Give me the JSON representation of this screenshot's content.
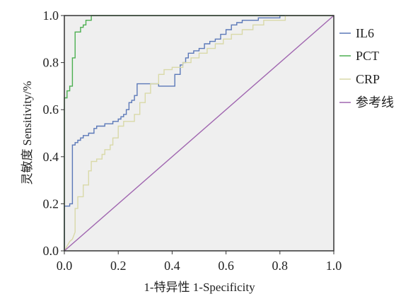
{
  "chart_data": {
    "type": "line",
    "title": "",
    "xlabel": "1-特异性 1-Specificity",
    "ylabel": "灵敏度 Sensitivity/%",
    "xlim": [
      0,
      1
    ],
    "ylim": [
      0,
      1
    ],
    "x_ticks": [
      "0.0",
      "0.2",
      "0.4",
      "0.6",
      "0.8",
      "1.0"
    ],
    "y_ticks": [
      "0.0",
      "0.2",
      "0.4",
      "0.6",
      "0.8",
      "1.0"
    ],
    "grid": false,
    "plot_background": "#efefef",
    "legend_position": "right",
    "series": [
      {
        "name": "IL6",
        "color": "#5b78b8",
        "points": [
          [
            0,
            0
          ],
          [
            0,
            0.19
          ],
          [
            0.02,
            0.19
          ],
          [
            0.02,
            0.2
          ],
          [
            0.03,
            0.2
          ],
          [
            0.03,
            0.45
          ],
          [
            0.04,
            0.45
          ],
          [
            0.04,
            0.46
          ],
          [
            0.05,
            0.46
          ],
          [
            0.05,
            0.47
          ],
          [
            0.06,
            0.47
          ],
          [
            0.06,
            0.48
          ],
          [
            0.07,
            0.48
          ],
          [
            0.07,
            0.49
          ],
          [
            0.09,
            0.49
          ],
          [
            0.09,
            0.5
          ],
          [
            0.11,
            0.5
          ],
          [
            0.11,
            0.52
          ],
          [
            0.12,
            0.52
          ],
          [
            0.12,
            0.53
          ],
          [
            0.15,
            0.53
          ],
          [
            0.15,
            0.54
          ],
          [
            0.18,
            0.54
          ],
          [
            0.18,
            0.55
          ],
          [
            0.2,
            0.55
          ],
          [
            0.2,
            0.56
          ],
          [
            0.21,
            0.56
          ],
          [
            0.21,
            0.57
          ],
          [
            0.22,
            0.57
          ],
          [
            0.22,
            0.58
          ],
          [
            0.23,
            0.58
          ],
          [
            0.23,
            0.6
          ],
          [
            0.24,
            0.6
          ],
          [
            0.24,
            0.63
          ],
          [
            0.25,
            0.63
          ],
          [
            0.25,
            0.64
          ],
          [
            0.26,
            0.64
          ],
          [
            0.26,
            0.66
          ],
          [
            0.27,
            0.66
          ],
          [
            0.27,
            0.71
          ],
          [
            0.35,
            0.71
          ],
          [
            0.35,
            0.7
          ],
          [
            0.41,
            0.7
          ],
          [
            0.41,
            0.75
          ],
          [
            0.43,
            0.75
          ],
          [
            0.43,
            0.79
          ],
          [
            0.44,
            0.79
          ],
          [
            0.44,
            0.8
          ],
          [
            0.45,
            0.8
          ],
          [
            0.45,
            0.82
          ],
          [
            0.46,
            0.82
          ],
          [
            0.46,
            0.84
          ],
          [
            0.48,
            0.84
          ],
          [
            0.48,
            0.85
          ],
          [
            0.5,
            0.85
          ],
          [
            0.5,
            0.86
          ],
          [
            0.52,
            0.86
          ],
          [
            0.52,
            0.88
          ],
          [
            0.54,
            0.88
          ],
          [
            0.54,
            0.89
          ],
          [
            0.56,
            0.89
          ],
          [
            0.56,
            0.9
          ],
          [
            0.58,
            0.9
          ],
          [
            0.58,
            0.92
          ],
          [
            0.6,
            0.92
          ],
          [
            0.6,
            0.94
          ],
          [
            0.62,
            0.94
          ],
          [
            0.62,
            0.96
          ],
          [
            0.64,
            0.96
          ],
          [
            0.64,
            0.97
          ],
          [
            0.66,
            0.97
          ],
          [
            0.66,
            0.98
          ],
          [
            0.72,
            0.98
          ],
          [
            0.72,
            0.99
          ],
          [
            0.8,
            0.99
          ],
          [
            0.8,
            1
          ],
          [
            1,
            1
          ]
        ]
      },
      {
        "name": "PCT",
        "color": "#4caf50",
        "points": [
          [
            0,
            0
          ],
          [
            0,
            0.65
          ],
          [
            0.01,
            0.65
          ],
          [
            0.01,
            0.68
          ],
          [
            0.02,
            0.68
          ],
          [
            0.02,
            0.7
          ],
          [
            0.03,
            0.7
          ],
          [
            0.03,
            0.82
          ],
          [
            0.04,
            0.82
          ],
          [
            0.04,
            0.93
          ],
          [
            0.06,
            0.93
          ],
          [
            0.06,
            0.95
          ],
          [
            0.07,
            0.95
          ],
          [
            0.07,
            0.96
          ],
          [
            0.08,
            0.96
          ],
          [
            0.08,
            0.98
          ],
          [
            0.1,
            0.98
          ],
          [
            0.1,
            1
          ],
          [
            1,
            1
          ]
        ]
      },
      {
        "name": "CRP",
        "color": "#d9d9a8",
        "points": [
          [
            0,
            0
          ],
          [
            0.01,
            0.02
          ],
          [
            0.02,
            0.04
          ],
          [
            0.03,
            0.05
          ],
          [
            0.04,
            0.08
          ],
          [
            0.04,
            0.18
          ],
          [
            0.05,
            0.18
          ],
          [
            0.05,
            0.23
          ],
          [
            0.07,
            0.23
          ],
          [
            0.07,
            0.28
          ],
          [
            0.09,
            0.28
          ],
          [
            0.09,
            0.34
          ],
          [
            0.1,
            0.34
          ],
          [
            0.1,
            0.38
          ],
          [
            0.12,
            0.38
          ],
          [
            0.12,
            0.39
          ],
          [
            0.14,
            0.39
          ],
          [
            0.14,
            0.41
          ],
          [
            0.15,
            0.41
          ],
          [
            0.15,
            0.43
          ],
          [
            0.17,
            0.43
          ],
          [
            0.17,
            0.45
          ],
          [
            0.18,
            0.45
          ],
          [
            0.18,
            0.48
          ],
          [
            0.2,
            0.48
          ],
          [
            0.2,
            0.53
          ],
          [
            0.22,
            0.53
          ],
          [
            0.22,
            0.55
          ],
          [
            0.26,
            0.55
          ],
          [
            0.26,
            0.58
          ],
          [
            0.28,
            0.58
          ],
          [
            0.28,
            0.63
          ],
          [
            0.3,
            0.63
          ],
          [
            0.3,
            0.67
          ],
          [
            0.32,
            0.67
          ],
          [
            0.32,
            0.71
          ],
          [
            0.35,
            0.71
          ],
          [
            0.35,
            0.75
          ],
          [
            0.37,
            0.75
          ],
          [
            0.37,
            0.77
          ],
          [
            0.4,
            0.77
          ],
          [
            0.4,
            0.78
          ],
          [
            0.44,
            0.78
          ],
          [
            0.44,
            0.8
          ],
          [
            0.47,
            0.8
          ],
          [
            0.47,
            0.82
          ],
          [
            0.5,
            0.82
          ],
          [
            0.5,
            0.84
          ],
          [
            0.53,
            0.84
          ],
          [
            0.53,
            0.86
          ],
          [
            0.56,
            0.86
          ],
          [
            0.56,
            0.88
          ],
          [
            0.59,
            0.88
          ],
          [
            0.59,
            0.9
          ],
          [
            0.62,
            0.9
          ],
          [
            0.62,
            0.92
          ],
          [
            0.66,
            0.92
          ],
          [
            0.66,
            0.94
          ],
          [
            0.7,
            0.94
          ],
          [
            0.7,
            0.96
          ],
          [
            0.74,
            0.96
          ],
          [
            0.74,
            0.98
          ],
          [
            0.82,
            0.98
          ],
          [
            0.82,
            1
          ],
          [
            1,
            1
          ]
        ]
      },
      {
        "name": "参考线",
        "color": "#a066b0",
        "points": [
          [
            0,
            0
          ],
          [
            1,
            1
          ]
        ]
      }
    ]
  }
}
